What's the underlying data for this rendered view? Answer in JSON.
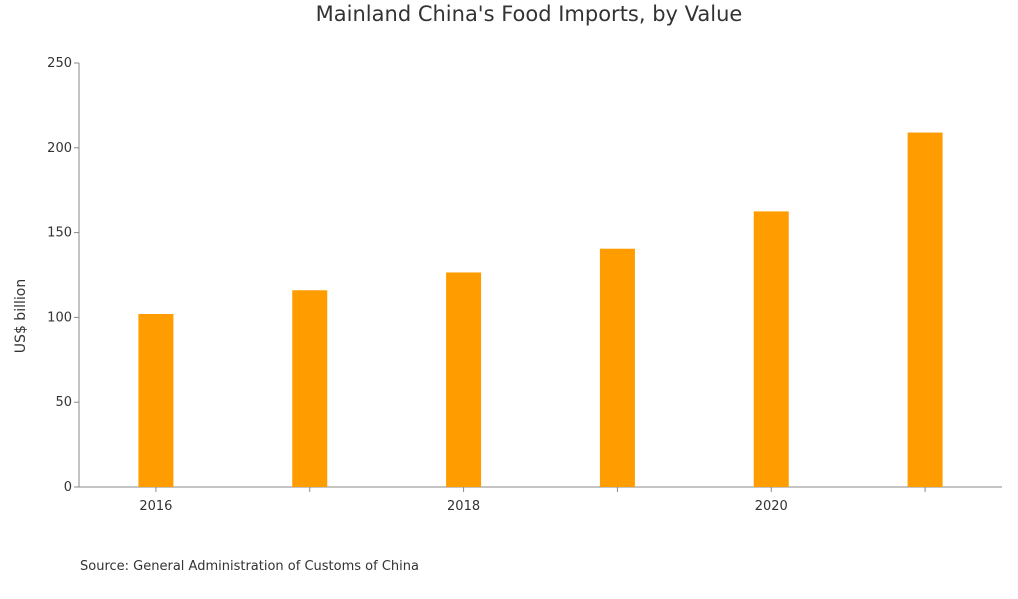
{
  "chart_data": {
    "type": "bar",
    "title": "Mainland China's Food Imports, by Value",
    "xlabel": "",
    "ylabel": "US$ billion",
    "categories": [
      "2016",
      "2017",
      "2018",
      "2019",
      "2020",
      "2021"
    ],
    "x_tick_labels": [
      "2016",
      "2018",
      "2020"
    ],
    "values": [
      102,
      116,
      126.5,
      140.5,
      162.5,
      209
    ],
    "ylim": [
      0,
      250
    ],
    "y_ticks": [
      0,
      50,
      100,
      150,
      200,
      250
    ],
    "grid": false,
    "legend": "none",
    "bar_color": "#ff9c00",
    "axis_color": "#888888"
  },
  "footer": {
    "source": "Source: General Administration of Customs of China"
  }
}
